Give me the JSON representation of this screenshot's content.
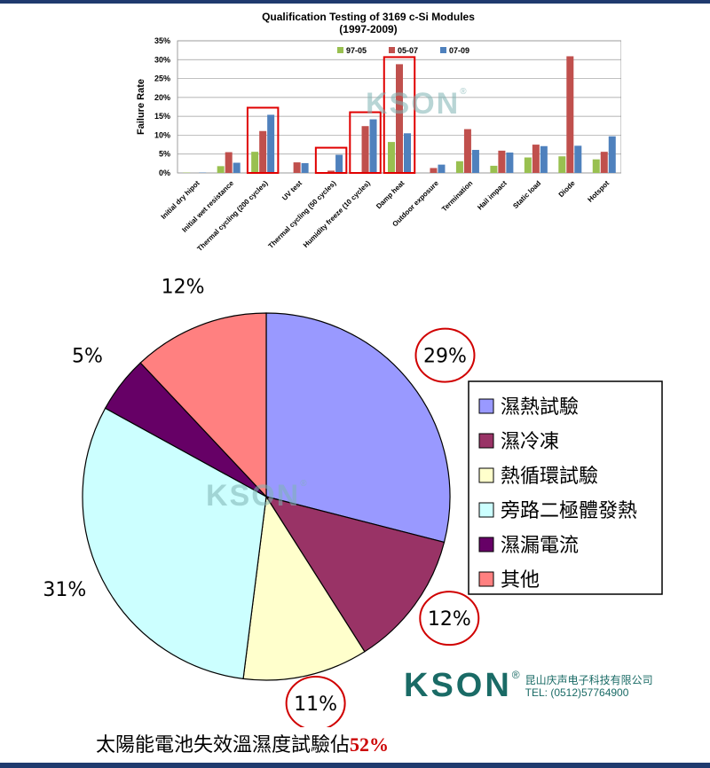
{
  "chart_data": [
    {
      "type": "bar",
      "title": "Qualification Testing of 3169 c-Si Modules",
      "subtitle": "(1997-2009)",
      "ylabel": "Failure Rate",
      "ylim": [
        0,
        35
      ],
      "yticks": [
        "0%",
        "5%",
        "10%",
        "15%",
        "20%",
        "25%",
        "30%",
        "35%"
      ],
      "grid": true,
      "legend_position": "top-right",
      "categories": [
        "Initial dry hipot",
        "Initial wet resistance",
        "Thermal cycling (200 cycles)",
        "UV test",
        "Thermal cycling (50 cycles)",
        "Humidity freeze (10 cycles)",
        "Damp heat",
        "Outdoor exposure",
        "Termination",
        "Hail impact",
        "Static load",
        "Diode",
        "Hotspot"
      ],
      "series": [
        {
          "name": "97-05",
          "color": "#99c050",
          "values": [
            0.1,
            1.8,
            5.6,
            0,
            0,
            0,
            8.2,
            0,
            3.1,
            1.9,
            4.1,
            4.4,
            3.6
          ]
        },
        {
          "name": "05-07",
          "color": "#c0504d",
          "values": [
            0,
            5.5,
            11.1,
            2.8,
            0.6,
            12.4,
            28.8,
            1.3,
            11.6,
            5.9,
            7.5,
            30.9,
            5.6
          ]
        },
        {
          "name": "07-09",
          "color": "#4f81bd",
          "values": [
            0.1,
            2.7,
            15.4,
            2.6,
            4.8,
            14.2,
            10.5,
            2.2,
            6.1,
            5.4,
            7.1,
            7.2,
            9.7
          ]
        }
      ],
      "highlighted_categories": [
        "Thermal cycling (200 cycles)",
        "Thermal cycling (50 cycles)",
        "Humidity freeze (10 cycles)",
        "Damp heat"
      ],
      "highlight_color": "#e00000"
    },
    {
      "type": "pie",
      "slices": [
        {
          "label": "濕熱試驗",
          "value": 29,
          "display": "29%",
          "color": "#9999ff",
          "circled": true
        },
        {
          "label": "濕冷凍",
          "value": 12,
          "display": "12%",
          "color": "#993366",
          "circled": true
        },
        {
          "label": "熱循環試驗",
          "value": 11,
          "display": "11%",
          "color": "#ffffcc",
          "circled": true
        },
        {
          "label": "旁路二極體發熱",
          "value": 31,
          "display": "31%",
          "color": "#ccffff",
          "circled": false
        },
        {
          "label": "濕漏電流",
          "value": 5,
          "display": "5%",
          "color": "#660066",
          "circled": false
        },
        {
          "label": "其他",
          "value": 12,
          "display": "12%",
          "color": "#ff8080",
          "circled": false
        }
      ],
      "legend_position": "right"
    }
  ],
  "watermark": {
    "text": "KSON",
    "reg": "®"
  },
  "logo": {
    "mark": "KSON",
    "reg": "®",
    "company": "昆山庆声电子科技有限公司",
    "tel": "TEL: (0512)57764900"
  },
  "caption": {
    "text": "太陽能電池失效溫濕度試驗佔",
    "percent": "52%"
  }
}
